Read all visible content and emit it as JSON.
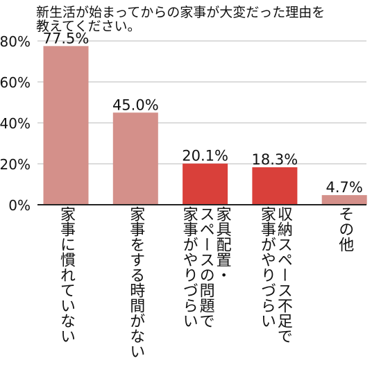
{
  "chart_data": {
    "type": "bar",
    "title_lines": [
      "新生活が始まってからの家事が大変だった理由を",
      "教えてください。"
    ],
    "categories": [
      [
        "家事に慣れていない"
      ],
      [
        "家事をする時間がない"
      ],
      [
        "家具配置・",
        "スペースの問題で",
        "家事がやりづらい"
      ],
      [
        "収納スペース不足で",
        "家事がやりづらい"
      ],
      [
        "その他"
      ]
    ],
    "values": [
      77.5,
      45.0,
      20.1,
      18.3,
      4.7
    ],
    "value_labels": [
      "77.5%",
      "45.0%",
      "20.1%",
      "18.3%",
      "4.7%"
    ],
    "highlight": [
      false,
      false,
      true,
      true,
      false
    ],
    "ylim": [
      0,
      80
    ],
    "yticks": [
      0,
      20,
      40,
      60,
      80
    ],
    "ytick_labels": [
      "0%",
      "20%",
      "40%",
      "60%",
      "80%"
    ],
    "grid": true,
    "colors": {
      "bar": "#d4908a",
      "highlight": "#d9403a",
      "grid": "#d0d0d0",
      "axis": "#222222",
      "text": "#111111"
    }
  }
}
